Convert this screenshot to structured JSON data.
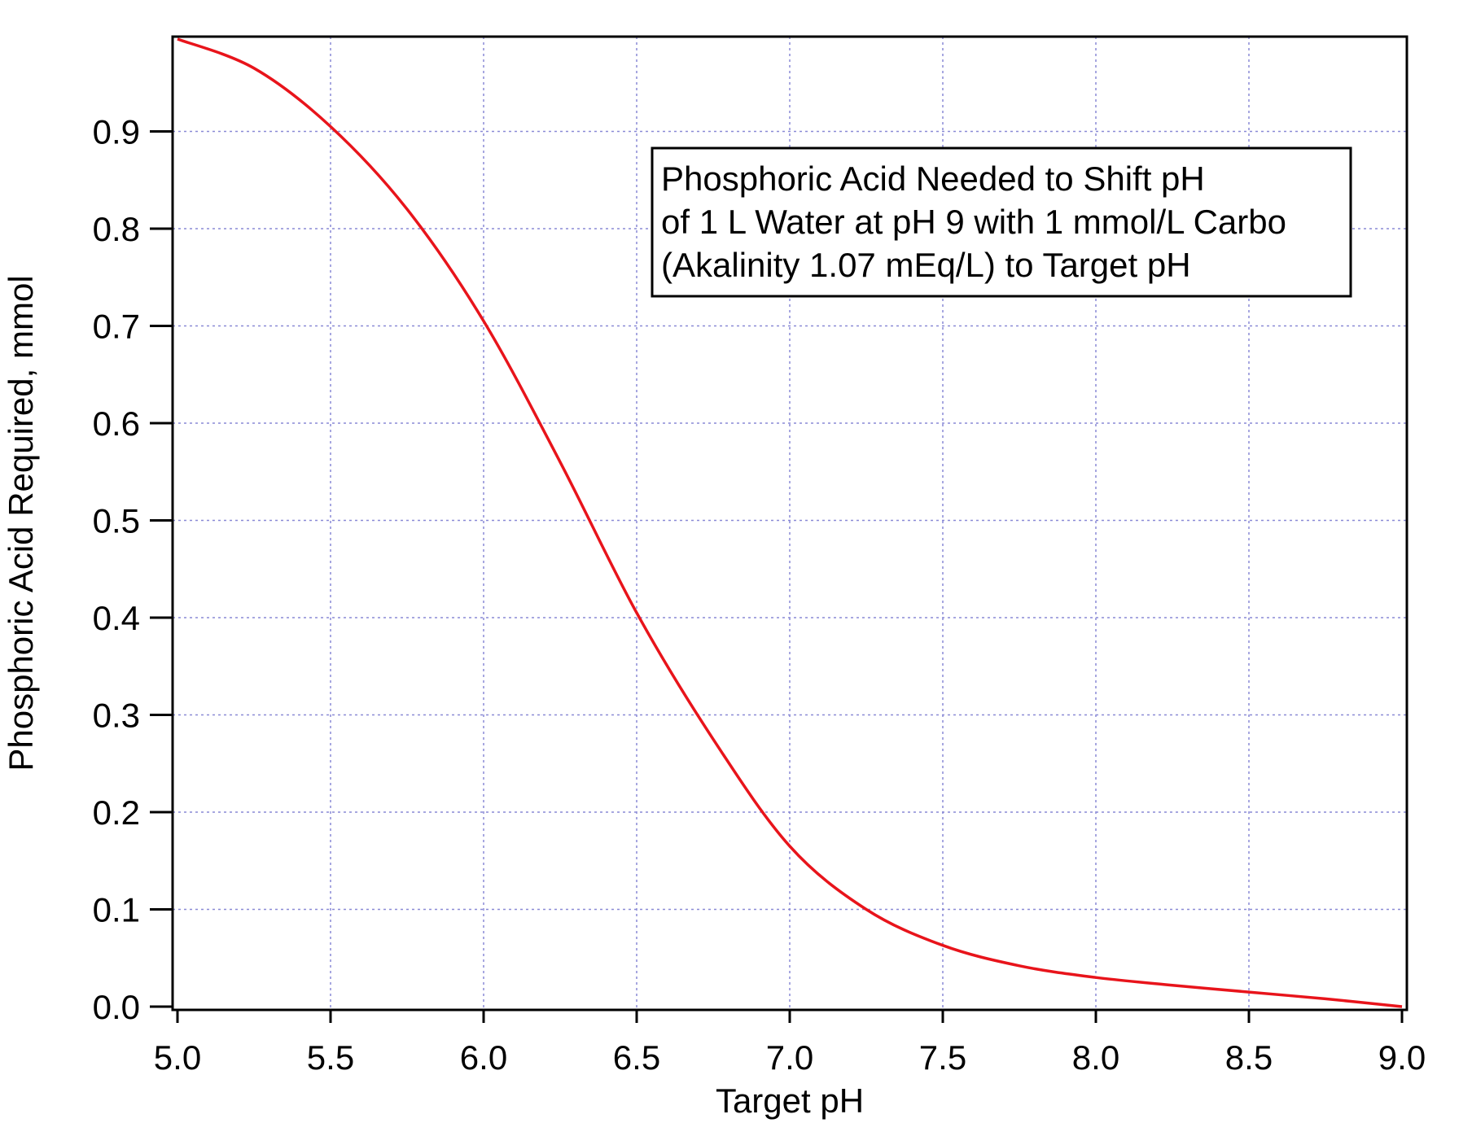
{
  "chart_data": {
    "type": "line",
    "title": "",
    "xlabel": "Target pH",
    "ylabel": "Phosphoric Acid Required, mmol",
    "xlim": [
      5.0,
      9.0
    ],
    "ylim": [
      0.0,
      0.99
    ],
    "x_ticks": [
      "5.0",
      "5.5",
      "6.0",
      "6.5",
      "7.0",
      "7.5",
      "8.0",
      "8.5",
      "9.0"
    ],
    "y_ticks": [
      "0.0",
      "0.1",
      "0.2",
      "0.3",
      "0.4",
      "0.5",
      "0.6",
      "0.7",
      "0.8",
      "0.9"
    ],
    "grid": true,
    "annotation": {
      "lines": [
        "Phosphoric Acid Needed to Shift pH",
        "of 1 L Water at pH 9 with 1 mmol/L Carbo",
        "(Akalinity 1.07 mEq/L) to Target pH"
      ],
      "placement": "top-right"
    },
    "series": [
      {
        "color": "#e8141b",
        "x": [
          5.0,
          5.25,
          5.5,
          5.75,
          6.0,
          6.25,
          6.5,
          6.75,
          7.0,
          7.25,
          7.5,
          7.75,
          8.0,
          8.25,
          8.5,
          8.75,
          9.0
        ],
        "values": [
          0.995,
          0.965,
          0.905,
          0.82,
          0.705,
          0.56,
          0.405,
          0.275,
          0.165,
          0.1,
          0.063,
          0.042,
          0.03,
          0.022,
          0.015,
          0.008,
          0.0
        ]
      }
    ]
  },
  "colors": {
    "line": "#e8141b",
    "grid": "#8a8ad6",
    "frame": "#000000"
  }
}
